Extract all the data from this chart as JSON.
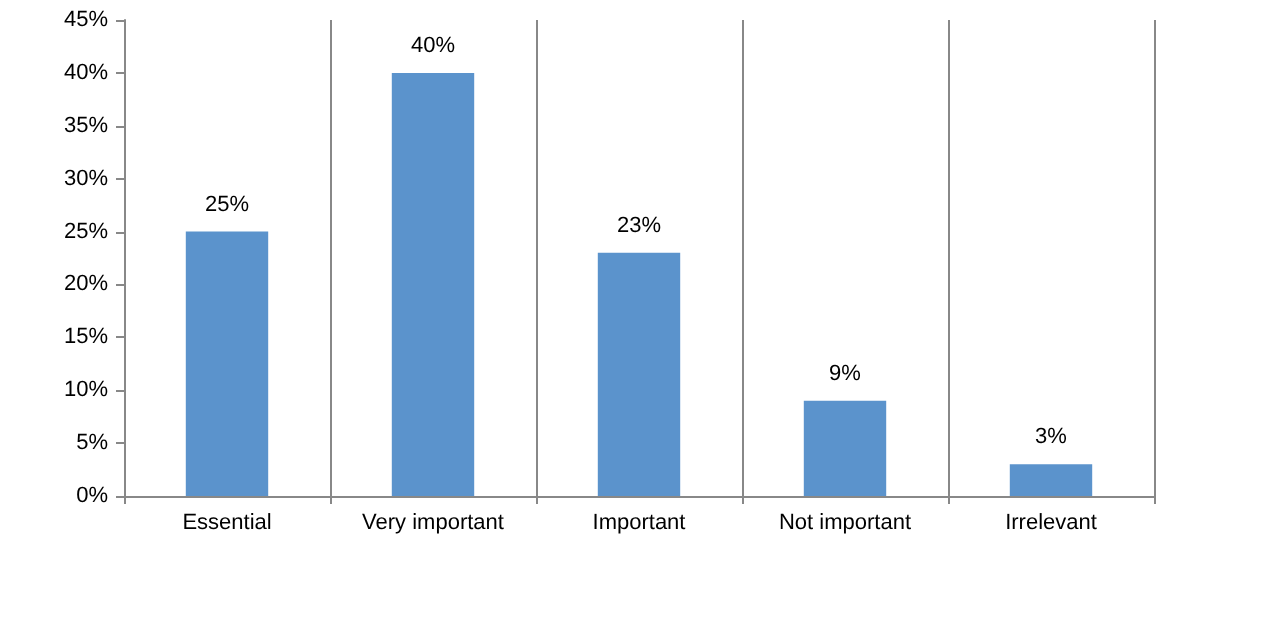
{
  "chart_data": {
    "type": "bar",
    "categories": [
      "Essential",
      "Very important",
      "Important",
      "Not important",
      "Irrelevant"
    ],
    "values": [
      25,
      40,
      23,
      9,
      3
    ],
    "value_labels": [
      "25%",
      "40%",
      "23%",
      "9%",
      "3%"
    ],
    "color": "#5b93cc",
    "ylim": [
      0,
      45
    ],
    "yticks": [
      {
        "value": 0,
        "label": "0%"
      },
      {
        "value": 5,
        "label": "5%"
      },
      {
        "value": 10,
        "label": "10%"
      },
      {
        "value": 15,
        "label": "15%"
      },
      {
        "value": 20,
        "label": "20%"
      },
      {
        "value": 25,
        "label": "25%"
      },
      {
        "value": 30,
        "label": "30%"
      },
      {
        "value": 35,
        "label": "35%"
      },
      {
        "value": 40,
        "label": "40%"
      },
      {
        "value": 45,
        "label": "45%"
      }
    ],
    "grid": "x"
  }
}
